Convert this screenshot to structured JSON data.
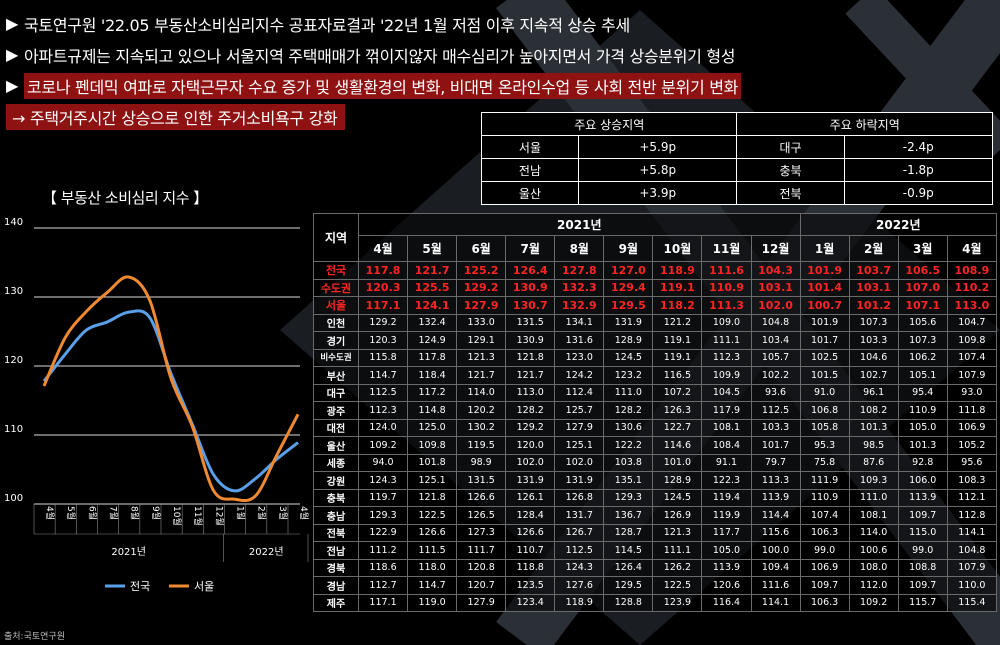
{
  "bullets": [
    {
      "mark": "▶",
      "text": "국토연구원 '22.05 부동산소비심리지수 공표자료결과 '22년 1월 저점 이후 지속적 상승 추세"
    },
    {
      "mark": "▶",
      "text": "아파트규제는 지속되고 있으나 서울지역 주택매매가 꺾이지않자 매수심리가 높아지면서 가격 상승분위기 형성"
    },
    {
      "mark": "▶",
      "text": "코로나 펜데믹 여파로 자택근무자 수요 증가 및 생활환경의 변화, 비대면 온라인수업 등 사회 전반 분위기 변화"
    },
    {
      "mark": "→",
      "text": "주택거주시간 상승으로 인한 주거소비욕구 강화"
    }
  ],
  "summary": {
    "rise_header": "주요 상승지역",
    "fall_header": "주요 하락지역",
    "rows": [
      {
        "rise_region": "서울",
        "rise_value": "+5.9p",
        "fall_region": "대구",
        "fall_value": "-2.4p"
      },
      {
        "rise_region": "전남",
        "rise_value": "+5.8p",
        "fall_region": "충북",
        "fall_value": "-1.8p"
      },
      {
        "rise_region": "울산",
        "rise_value": "+3.9p",
        "fall_region": "전북",
        "fall_value": "-0.9p"
      }
    ]
  },
  "chart_title": "【 부동산 소비심리 지수 】",
  "source": "출처:국토연구원",
  "chart_data": {
    "type": "line",
    "categories": [
      "4월",
      "5월",
      "6월",
      "7월",
      "8월",
      "9월",
      "10월",
      "11월",
      "12월",
      "1월",
      "2월",
      "3월",
      "4월"
    ],
    "year_groups": [
      {
        "label": "2021년",
        "span": 9
      },
      {
        "label": "2022년",
        "span": 4
      }
    ],
    "series": [
      {
        "name": "전국",
        "color": "#5aa0e8",
        "values": [
          117.8,
          121.7,
          125.2,
          126.4,
          127.8,
          127.0,
          118.9,
          111.6,
          104.3,
          101.9,
          103.7,
          106.5,
          108.9
        ]
      },
      {
        "name": "서울",
        "color": "#f08a30",
        "values": [
          117.1,
          124.1,
          127.9,
          130.7,
          132.9,
          129.5,
          118.2,
          111.3,
          102.0,
          100.7,
          101.2,
          107.1,
          113.0
        ]
      }
    ],
    "ylim": [
      100,
      140
    ],
    "yticks": [
      100,
      110,
      120,
      130,
      140
    ],
    "grid": true,
    "legend": "bottom"
  },
  "table": {
    "region_header": "지역",
    "years": [
      {
        "label": "2021년",
        "span": 9
      },
      {
        "label": "2022년",
        "span": 4
      }
    ],
    "months": [
      "4월",
      "5월",
      "6월",
      "7월",
      "8월",
      "9월",
      "10월",
      "11월",
      "12월",
      "1월",
      "2월",
      "3월",
      "4월"
    ],
    "rows": [
      {
        "region": "전국",
        "red": true,
        "values": [
          "117.8",
          "121.7",
          "125.2",
          "126.4",
          "127.8",
          "127.0",
          "118.9",
          "111.6",
          "104.3",
          "101.9",
          "103.7",
          "106.5",
          "108.9"
        ]
      },
      {
        "region": "수도권",
        "red": true,
        "values": [
          "120.3",
          "125.5",
          "129.2",
          "130.9",
          "132.3",
          "129.4",
          "119.1",
          "110.9",
          "103.1",
          "101.4",
          "103.1",
          "107.0",
          "110.2"
        ]
      },
      {
        "region": "서울",
        "red": true,
        "values": [
          "117.1",
          "124.1",
          "127.9",
          "130.7",
          "132.9",
          "129.5",
          "118.2",
          "111.3",
          "102.0",
          "100.7",
          "101.2",
          "107.1",
          "113.0"
        ]
      },
      {
        "region": "인천",
        "values": [
          "129.2",
          "132.4",
          "133.0",
          "131.5",
          "134.1",
          "131.9",
          "121.2",
          "109.0",
          "104.8",
          "101.9",
          "107.3",
          "105.6",
          "104.7"
        ]
      },
      {
        "region": "경기",
        "values": [
          "120.3",
          "124.9",
          "129.1",
          "130.9",
          "131.6",
          "128.9",
          "119.1",
          "111.1",
          "103.4",
          "101.7",
          "103.3",
          "107.3",
          "109.8"
        ]
      },
      {
        "region": "비수도권",
        "values": [
          "115.8",
          "117.8",
          "121.3",
          "121.8",
          "123.0",
          "124.5",
          "119.1",
          "112.3",
          "105.7",
          "102.5",
          "104.6",
          "106.2",
          "107.4"
        ]
      },
      {
        "region": "부산",
        "values": [
          "114.7",
          "118.4",
          "121.7",
          "121.7",
          "124.2",
          "123.2",
          "116.5",
          "109.9",
          "102.2",
          "101.5",
          "102.7",
          "105.1",
          "107.9"
        ]
      },
      {
        "region": "대구",
        "values": [
          "112.5",
          "117.2",
          "114.0",
          "113.0",
          "112.4",
          "111.0",
          "107.2",
          "104.5",
          "93.6",
          "91.0",
          "96.1",
          "95.4",
          "93.0"
        ]
      },
      {
        "region": "광주",
        "values": [
          "112.3",
          "114.8",
          "120.2",
          "128.2",
          "125.7",
          "128.2",
          "126.3",
          "117.9",
          "112.5",
          "106.8",
          "108.2",
          "110.9",
          "111.8"
        ]
      },
      {
        "region": "대전",
        "values": [
          "124.0",
          "125.0",
          "130.2",
          "129.2",
          "127.9",
          "130.6",
          "122.7",
          "108.1",
          "103.3",
          "105.8",
          "101.3",
          "105.0",
          "106.9"
        ]
      },
      {
        "region": "울산",
        "values": [
          "109.2",
          "109.8",
          "119.5",
          "120.0",
          "125.1",
          "122.2",
          "114.6",
          "108.4",
          "101.7",
          "95.3",
          "98.5",
          "101.3",
          "105.2"
        ]
      },
      {
        "region": "세종",
        "values": [
          "94.0",
          "101.8",
          "98.9",
          "102.0",
          "102.0",
          "103.8",
          "101.0",
          "91.1",
          "79.7",
          "75.8",
          "87.6",
          "92.8",
          "95.6"
        ]
      },
      {
        "region": "강원",
        "values": [
          "124.3",
          "125.1",
          "131.5",
          "131.9",
          "131.9",
          "135.1",
          "128.9",
          "122.3",
          "113.3",
          "111.9",
          "109.3",
          "106.0",
          "108.3"
        ]
      },
      {
        "region": "충북",
        "values": [
          "119.7",
          "121.8",
          "126.6",
          "126.1",
          "126.8",
          "129.3",
          "124.5",
          "119.4",
          "113.9",
          "110.9",
          "111.0",
          "113.9",
          "112.1"
        ]
      },
      {
        "region": "충남",
        "values": [
          "129.3",
          "122.5",
          "126.5",
          "128.4",
          "131.7",
          "136.7",
          "126.9",
          "119.9",
          "114.4",
          "107.4",
          "108.1",
          "109.7",
          "112.8"
        ]
      },
      {
        "region": "전북",
        "values": [
          "122.9",
          "126.6",
          "127.3",
          "126.6",
          "126.7",
          "128.7",
          "121.3",
          "117.7",
          "115.6",
          "106.3",
          "114.0",
          "115.0",
          "114.1"
        ]
      },
      {
        "region": "전남",
        "values": [
          "111.2",
          "111.5",
          "111.7",
          "110.7",
          "112.5",
          "114.5",
          "111.1",
          "105.0",
          "100.0",
          "99.0",
          "100.6",
          "99.0",
          "104.8"
        ]
      },
      {
        "region": "경북",
        "values": [
          "118.6",
          "118.0",
          "120.8",
          "118.8",
          "124.3",
          "126.4",
          "126.2",
          "113.9",
          "109.4",
          "106.9",
          "108.0",
          "108.8",
          "107.9"
        ]
      },
      {
        "region": "경남",
        "values": [
          "112.7",
          "114.7",
          "120.7",
          "123.5",
          "127.6",
          "129.5",
          "122.5",
          "120.6",
          "111.6",
          "109.7",
          "112.0",
          "109.7",
          "110.0"
        ]
      },
      {
        "region": "제주",
        "values": [
          "117.1",
          "119.0",
          "127.9",
          "123.4",
          "118.9",
          "128.8",
          "123.9",
          "116.4",
          "114.1",
          "106.3",
          "109.2",
          "115.7",
          "115.4"
        ]
      }
    ]
  }
}
